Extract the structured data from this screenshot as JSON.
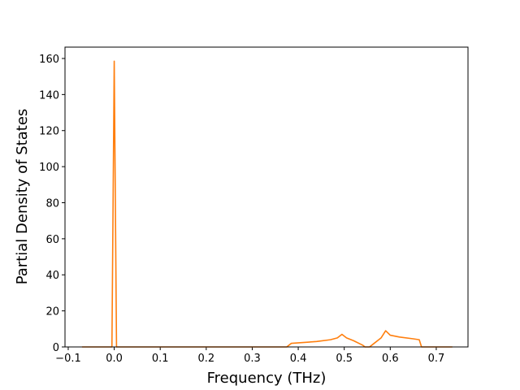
{
  "chart_data": {
    "type": "line",
    "xlabel": "Frequency (THz)",
    "ylabel": "Partial Density of States",
    "x": [
      -0.07,
      -0.005,
      0.0,
      0.005,
      0.375,
      0.385,
      0.44,
      0.47,
      0.485,
      0.495,
      0.505,
      0.52,
      0.54,
      0.545,
      0.555,
      0.565,
      0.575,
      0.58,
      0.59,
      0.6,
      0.62,
      0.65,
      0.663,
      0.668,
      0.735
    ],
    "series": [
      {
        "color": "#ff7f0e",
        "values": [
          0,
          0,
          158.5,
          0,
          0,
          2,
          3,
          4,
          5,
          7,
          5,
          3.5,
          1,
          0,
          0,
          2,
          4,
          5,
          9,
          6.5,
          5.5,
          4.5,
          4,
          0,
          0
        ]
      }
    ],
    "xlim": [
      -0.107,
      0.769
    ],
    "xticks": [
      {
        "value": -0.1,
        "label": "−0.1"
      },
      {
        "value": 0.0,
        "label": "0.0"
      },
      0.1,
      0.2,
      0.3,
      0.4,
      0.5,
      0.6,
      0.7
    ],
    "ylim": [
      0,
      166.3
    ],
    "yticks": [
      0,
      20,
      40,
      60,
      80,
      100,
      120,
      140,
      160
    ]
  }
}
